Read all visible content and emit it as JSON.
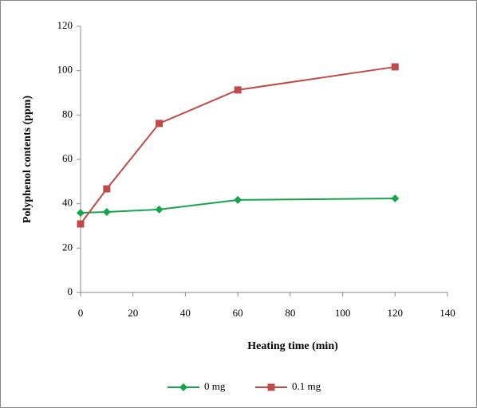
{
  "chart_data": {
    "type": "line",
    "x_label": "Heating time (min)",
    "y_label": "Polyphenol contents (ppm)",
    "x": [
      0,
      10,
      30,
      60,
      120
    ],
    "series": [
      {
        "name": "0 mg",
        "color": "#16a54b",
        "marker": "diamond",
        "values": [
          35.9,
          36.3,
          37.4,
          41.7,
          42.4
        ]
      },
      {
        "name": "0.1 mg",
        "color": "#be4b48",
        "marker": "square",
        "values": [
          30.9,
          46.7,
          76.2,
          91.3,
          101.7
        ]
      }
    ],
    "xlim": [
      0,
      140
    ],
    "xticks": [
      0,
      20,
      40,
      60,
      80,
      100,
      120,
      140
    ],
    "ylim": [
      0,
      120
    ],
    "yticks": [
      0,
      20,
      40,
      60,
      80,
      100,
      120
    ],
    "grid": false,
    "legend": "bottom"
  }
}
